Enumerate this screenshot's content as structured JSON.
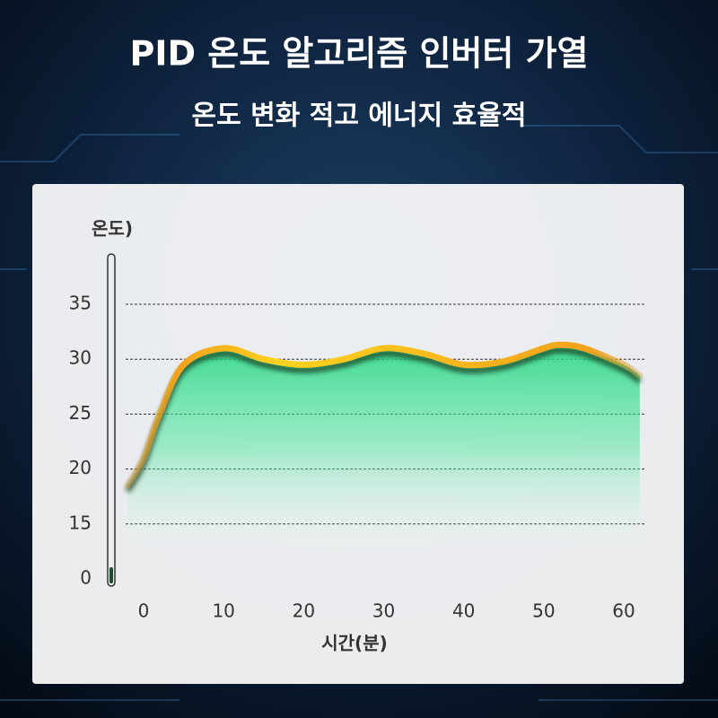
{
  "chart_data": {
    "type": "line",
    "title": "PID 온도 알고리즘 인버터 가열",
    "subtitle": "온도 변화 적고 에너지 효율적",
    "y_label": "온도)",
    "x_label": "시간(분)",
    "xlim": [
      -2,
      62
    ],
    "xticks": [
      0,
      10,
      20,
      30,
      40,
      50,
      60
    ],
    "ylim": [
      0,
      35
    ],
    "yticks": [
      0,
      15,
      20,
      25,
      30,
      35
    ],
    "grid": true,
    "series": [
      {
        "color": "#f2a21c",
        "x": [
          -2,
          0,
          2,
          5,
          10,
          15,
          20,
          25,
          30,
          35,
          40,
          45,
          50,
          52,
          55,
          60,
          62
        ],
        "values": [
          18.5,
          21,
          25,
          29.5,
          31,
          30,
          29.5,
          30,
          31,
          30.5,
          29.5,
          29.8,
          31,
          31.3,
          31,
          29.5,
          28.5
        ]
      }
    ]
  }
}
